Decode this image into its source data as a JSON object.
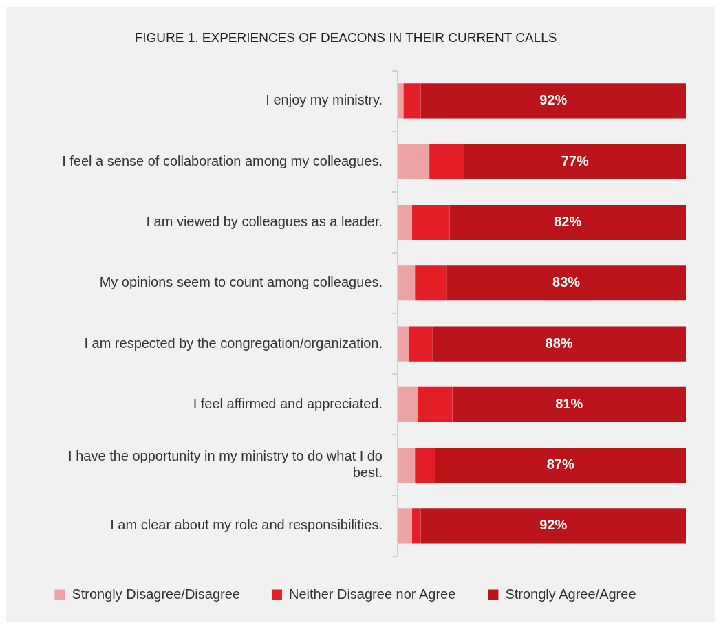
{
  "chart_data": {
    "type": "bar",
    "orientation": "horizontal",
    "stacked": true,
    "title": "FIGURE 1. EXPERIENCES OF DEACONS IN THEIR CURRENT CALLS",
    "categories": [
      "I enjoy my ministry.",
      "I feel a sense of collaboration among my colleagues.",
      "I am viewed by colleagues as a leader.",
      "My opinions seem to count among colleagues.",
      "I am respected by the congregation/organization.",
      "I feel affirmed and appreciated.",
      "I have the opportunity in my ministry to do what I do best.",
      "I am clear about my role and responsibilities."
    ],
    "series": [
      {
        "name": "Strongly Disagree/Disagree",
        "color": "#eca3a3",
        "values": [
          2,
          11,
          5,
          6,
          4,
          7,
          6,
          5
        ]
      },
      {
        "name": "Neither Disagree nor Agree",
        "color": "#e31e26",
        "values": [
          6,
          12,
          13,
          11,
          8,
          12,
          7,
          3
        ]
      },
      {
        "name": "Strongly Agree/Agree",
        "color": "#bb141a",
        "values": [
          92,
          77,
          82,
          83,
          88,
          81,
          87,
          92
        ],
        "value_labels": [
          "92%",
          "77%",
          "82%",
          "83%",
          "88%",
          "81%",
          "87%",
          "92%"
        ]
      }
    ],
    "xlim": [
      0,
      100
    ],
    "tick_labels": "y",
    "grid": false,
    "legend": "bottom"
  }
}
